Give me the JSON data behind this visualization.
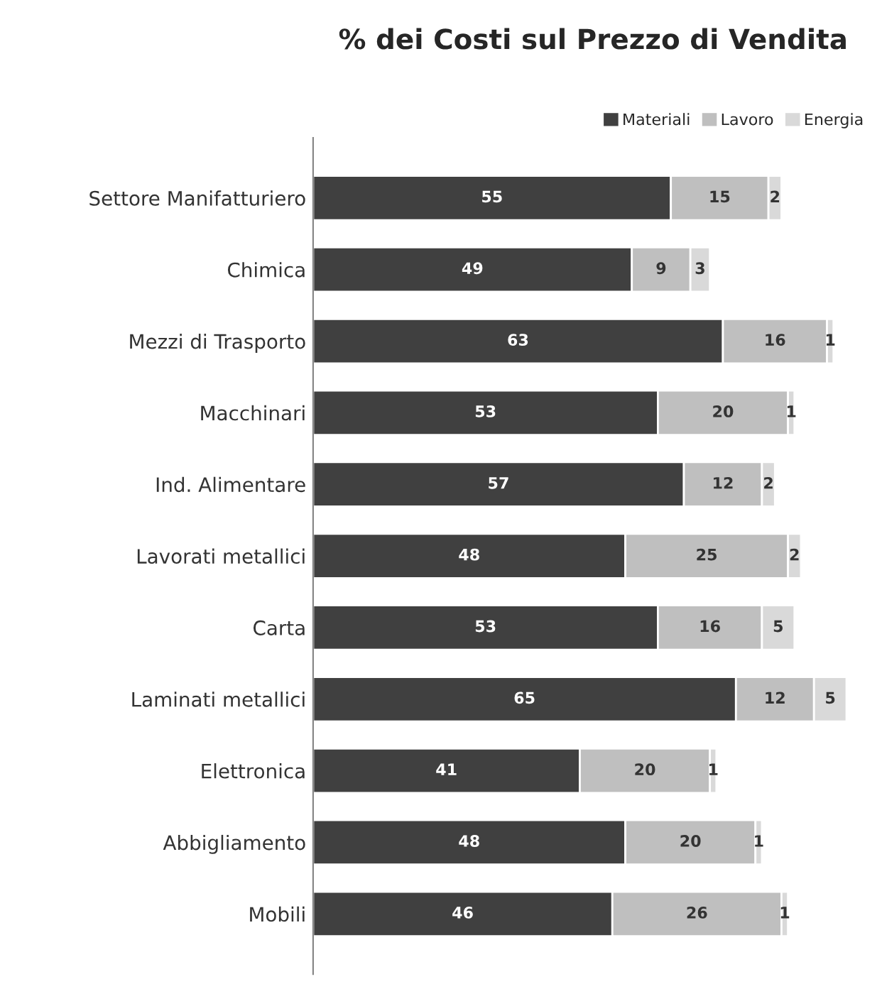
{
  "chart_data": {
    "type": "bar",
    "orientation": "horizontal",
    "stacked": true,
    "title": "% dei Costi sul Prezzo di Vendita",
    "categories": [
      "Settore Manifatturiero",
      "Chimica",
      "Mezzi di Trasporto",
      "Macchinari",
      "Ind. Alimentare",
      "Lavorati metallici",
      "Carta",
      "Laminati metallici",
      "Elettronica",
      "Abbigliamento",
      "Mobili"
    ],
    "series": [
      {
        "name": "Materiali",
        "color": "#404040",
        "values": [
          55,
          49,
          63,
          53,
          57,
          48,
          53,
          65,
          41,
          48,
          46
        ]
      },
      {
        "name": "Lavoro",
        "color": "#bfbfbf",
        "values": [
          15,
          9,
          16,
          20,
          12,
          25,
          16,
          12,
          20,
          20,
          26
        ]
      },
      {
        "name": "Energia",
        "color": "#d9d9d9",
        "values": [
          2,
          3,
          1,
          1,
          2,
          2,
          5,
          5,
          1,
          1,
          1
        ]
      }
    ],
    "data_labels": true,
    "legend": "top right",
    "tick_labels": "y",
    "grid": false
  }
}
